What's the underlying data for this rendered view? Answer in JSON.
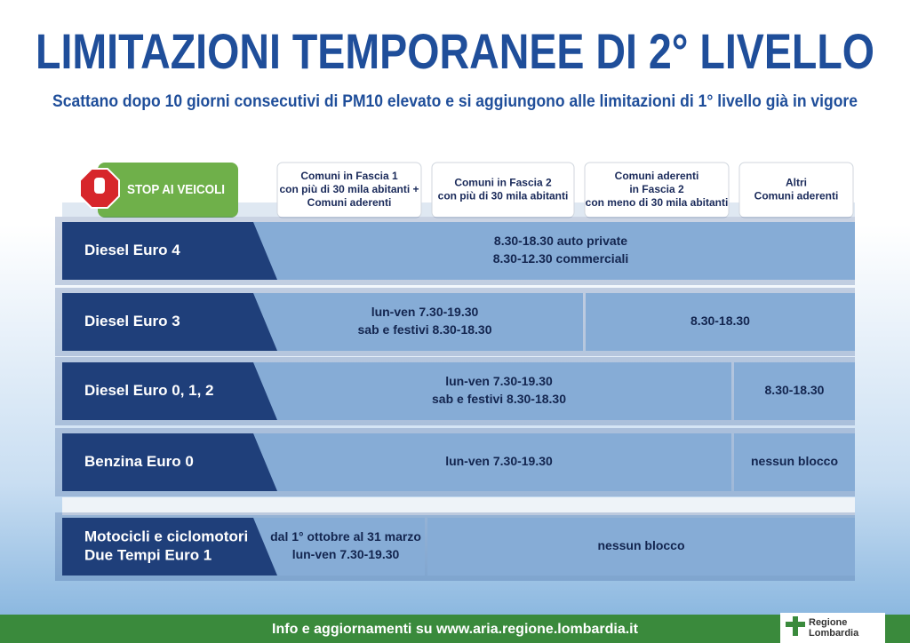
{
  "header": {
    "title": "LIMITAZIONI TEMPORANEE DI 2° LIVELLO",
    "subtitle": "Scattano dopo 10 giorni consecutivi di PM10 elevato e si aggiungono alle limitazioni di 1° livello già in vigore"
  },
  "table": {
    "stop_label": "STOP AI VEICOLI",
    "columns": [
      [
        "Comuni in Fascia 1",
        "con più di 30 mila abitanti +",
        "Comuni aderenti"
      ],
      [
        "Comuni in Fascia 2",
        "con più di 30 mila abitanti"
      ],
      [
        "Comuni aderenti",
        "in Fascia 2",
        "con meno di 30 mila abitanti"
      ],
      [
        "Altri",
        "Comuni aderenti"
      ]
    ],
    "rows": [
      {
        "label": [
          "Diesel Euro 4"
        ],
        "cells": [
          [
            "8.30-18.30 auto private",
            "8.30-12.30 commerciali"
          ]
        ]
      },
      {
        "label": [
          "Diesel Euro 3"
        ],
        "cells": [
          [
            "lun-ven 7.30-19.30",
            "sab e festivi 8.30-18.30"
          ],
          [
            "8.30-18.30"
          ]
        ]
      },
      {
        "label": [
          "Diesel Euro 0, 1, 2"
        ],
        "cells": [
          [
            "lun-ven 7.30-19.30",
            "sab e festivi 8.30-18.30"
          ],
          [
            "8.30-18.30"
          ]
        ]
      },
      {
        "label": [
          "Benzina Euro 0"
        ],
        "cells": [
          [
            "lun-ven 7.30-19.30"
          ],
          [
            "nessun blocco"
          ]
        ]
      },
      {
        "label": [
          "Motocicli e ciclomotori",
          "Due Tempi Euro 1"
        ],
        "cells": [
          [
            "dal 1° ottobre al 31 marzo",
            "lun-ven 7.30-19.30"
          ],
          [
            "nessun blocco"
          ]
        ]
      }
    ]
  },
  "footer": {
    "text": "Info e aggiornamenti su www.aria.regione.lombardia.it",
    "logo": [
      "Regione",
      "Lombardia"
    ]
  }
}
